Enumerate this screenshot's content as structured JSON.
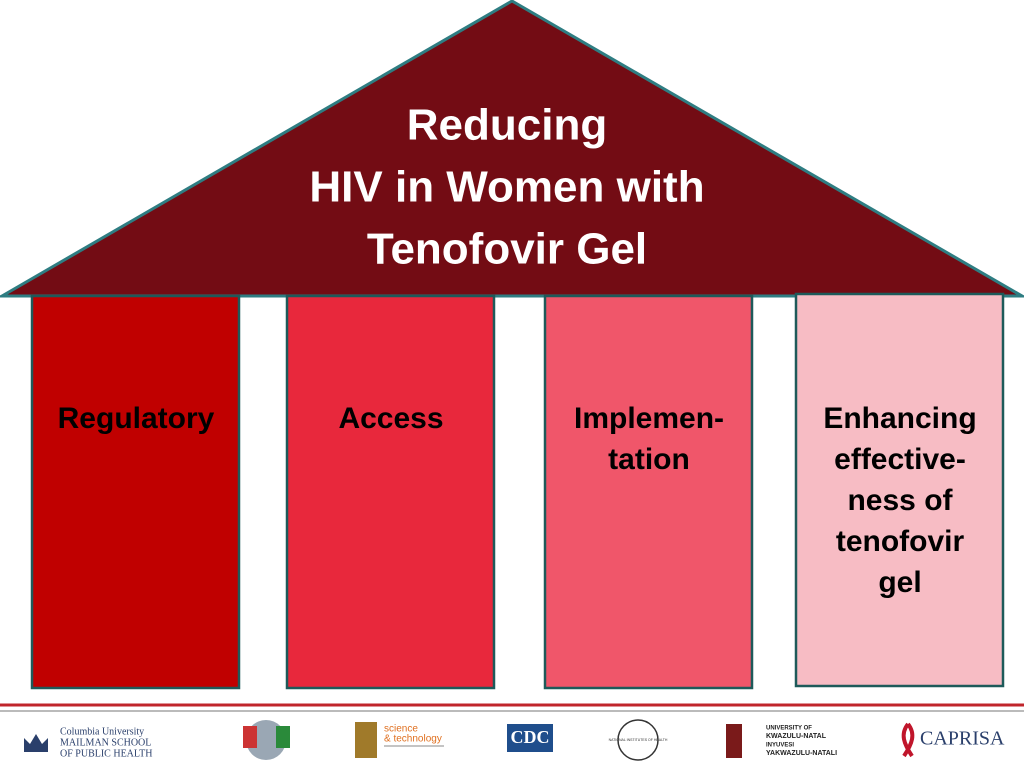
{
  "title": {
    "lines": [
      "Reducing",
      "HIV in Women with",
      "Tenofovir Gel"
    ]
  },
  "pillars": [
    {
      "lines": [
        "Regulatory"
      ]
    },
    {
      "lines": [
        "Access"
      ]
    },
    {
      "lines": [
        "Implemen-",
        "tation"
      ]
    },
    {
      "lines": [
        "Enhancing",
        "effective-",
        "ness of",
        "tenofovir",
        "gel"
      ]
    }
  ],
  "logos": {
    "columbia": [
      "Columbia University",
      "MAILMAN SCHOOL",
      "OF PUBLIC HEALTH"
    ],
    "dst": [
      "science",
      "& technology"
    ],
    "cdc": "CDC",
    "nih": "NATIONAL INSTITUTES OF HEALTH",
    "ukzn": [
      "UNIVERSITY OF",
      "KWAZULU-NATAL",
      "INYUVESI",
      "YAKWAZULU-NATALI"
    ],
    "caprisa": "CAPRISA"
  }
}
